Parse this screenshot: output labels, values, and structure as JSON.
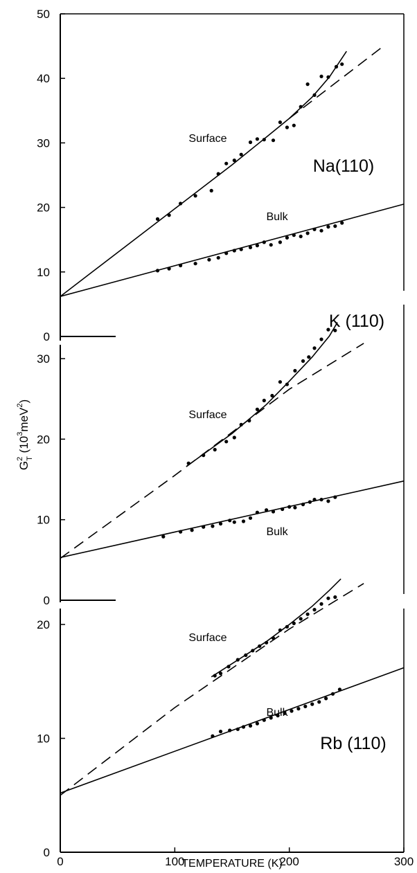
{
  "chart_data": [
    {
      "type": "scatter",
      "title": "Na(110)",
      "xlim": [
        0,
        300
      ],
      "ylim": [
        0,
        50
      ],
      "y_ticks": [
        0,
        10,
        20,
        30,
        40,
        50
      ],
      "y_tick_labels": [
        "0",
        "10",
        "20",
        "30",
        "40",
        "50"
      ],
      "series": [
        {
          "name": "Surface",
          "points": [
            [
              85,
              18.2
            ],
            [
              95,
              18.8
            ],
            [
              105,
              20.6
            ],
            [
              118,
              21.8
            ],
            [
              132,
              22.6
            ],
            [
              138,
              25.2
            ],
            [
              145,
              26.8
            ],
            [
              152,
              27.3
            ],
            [
              158,
              28.2
            ],
            [
              166,
              30.1
            ],
            [
              172,
              30.6
            ],
            [
              178,
              30.5
            ],
            [
              186,
              30.4
            ],
            [
              192,
              33.2
            ],
            [
              198,
              32.4
            ],
            [
              204,
              32.7
            ],
            [
              210,
              35.6
            ],
            [
              216,
              39.1
            ],
            [
              222,
              37.4
            ],
            [
              228,
              40.3
            ],
            [
              234,
              40.2
            ],
            [
              241,
              41.8
            ],
            [
              246,
              42.2
            ]
          ],
          "fit": [
            [
              0,
              6.2
            ],
            [
              100,
              19.8
            ],
            [
              150,
              26.6
            ],
            [
              180,
              30.9
            ],
            [
              200,
              33.8
            ],
            [
              220,
              37.1
            ],
            [
              235,
              40.2
            ],
            [
              250,
              44.2
            ]
          ],
          "harmonic_fit": [
            [
              200,
              33.8
            ],
            [
              280,
              44.7
            ]
          ]
        },
        {
          "name": "Bulk",
          "points": [
            [
              85,
              10.2
            ],
            [
              95,
              10.5
            ],
            [
              105,
              11.0
            ],
            [
              118,
              11.3
            ],
            [
              130,
              11.9
            ],
            [
              138,
              12.2
            ],
            [
              145,
              12.9
            ],
            [
              152,
              13.3
            ],
            [
              158,
              13.5
            ],
            [
              166,
              13.8
            ],
            [
              172,
              14.1
            ],
            [
              178,
              14.6
            ],
            [
              184,
              14.2
            ],
            [
              192,
              14.6
            ],
            [
              198,
              15.3
            ],
            [
              204,
              15.7
            ],
            [
              210,
              15.5
            ],
            [
              216,
              16.0
            ],
            [
              222,
              16.6
            ],
            [
              228,
              16.4
            ],
            [
              234,
              17.0
            ],
            [
              240,
              17.1
            ],
            [
              246,
              17.6
            ]
          ],
          "fit": [
            [
              0,
              6.2
            ],
            [
              300,
              20.5
            ]
          ]
        }
      ]
    },
    {
      "type": "scatter",
      "title": "K (110)",
      "xlim": [
        0,
        300
      ],
      "ylim": [
        0,
        33
      ],
      "y_ticks": [
        0,
        10,
        20,
        30
      ],
      "y_tick_labels": [
        "0",
        "10",
        "20",
        "30"
      ],
      "series": [
        {
          "name": "Surface",
          "points": [
            [
              112,
              17.0
            ],
            [
              125,
              18.0
            ],
            [
              135,
              18.7
            ],
            [
              145,
              19.7
            ],
            [
              152,
              20.2
            ],
            [
              158,
              21.8
            ],
            [
              165,
              22.3
            ],
            [
              172,
              23.7
            ],
            [
              178,
              24.8
            ],
            [
              185,
              25.4
            ],
            [
              192,
              27.1
            ],
            [
              198,
              26.8
            ],
            [
              205,
              28.5
            ],
            [
              212,
              29.7
            ],
            [
              217,
              30.2
            ],
            [
              222,
              31.3
            ],
            [
              228,
              32.4
            ],
            [
              234,
              33.6
            ],
            [
              240,
              33.5
            ]
          ],
          "fit": [
            [
              110,
              16.6
            ],
            [
              150,
              20.7
            ],
            [
              180,
              24.3
            ],
            [
              200,
              27.2
            ],
            [
              220,
              30.2
            ],
            [
              235,
              32.8
            ],
            [
              242,
              34.5
            ]
          ],
          "harmonic_fit": [
            [
              0,
              5.2
            ],
            [
              100,
              15.5
            ],
            [
              200,
              26.2
            ],
            [
              265,
              31.9
            ]
          ]
        },
        {
          "name": "Bulk",
          "points": [
            [
              90,
              7.9
            ],
            [
              105,
              8.5
            ],
            [
              115,
              8.7
            ],
            [
              125,
              9.1
            ],
            [
              133,
              9.2
            ],
            [
              140,
              9.5
            ],
            [
              148,
              9.9
            ],
            [
              152,
              9.7
            ],
            [
              160,
              9.8
            ],
            [
              166,
              10.2
            ],
            [
              172,
              10.9
            ],
            [
              180,
              11.2
            ],
            [
              186,
              11.0
            ],
            [
              194,
              11.3
            ],
            [
              200,
              11.6
            ],
            [
              205,
              11.5
            ],
            [
              212,
              11.9
            ],
            [
              218,
              12.2
            ],
            [
              222,
              12.5
            ],
            [
              228,
              12.5
            ],
            [
              234,
              12.3
            ],
            [
              240,
              12.8
            ]
          ],
          "fit": [
            [
              0,
              5.3
            ],
            [
              300,
              14.8
            ]
          ]
        }
      ]
    },
    {
      "type": "scatter",
      "title": "Rb (110)",
      "xlim": [
        0,
        300
      ],
      "ylim": [
        0,
        22
      ],
      "y_ticks": [
        0,
        10,
        20
      ],
      "y_tick_labels": [
        "0",
        "10",
        "20"
      ],
      "xlabel": "TEMPERATURE (K)",
      "ylabel": "G²_T (10³meV²)",
      "x_ticks": [
        0,
        100,
        200,
        300
      ],
      "x_tick_labels": [
        "0",
        "100",
        "200",
        "300"
      ],
      "series": [
        {
          "name": "Surface",
          "points": [
            [
              135,
              15.5
            ],
            [
              140,
              15.7
            ],
            [
              147,
              16.3
            ],
            [
              155,
              16.9
            ],
            [
              162,
              17.3
            ],
            [
              168,
              17.7
            ],
            [
              174,
              18.1
            ],
            [
              180,
              18.4
            ],
            [
              186,
              18.8
            ],
            [
              192,
              19.5
            ],
            [
              198,
              19.8
            ],
            [
              204,
              20.1
            ],
            [
              210,
              20.5
            ],
            [
              216,
              20.9
            ],
            [
              222,
              21.3
            ],
            [
              228,
              21.8
            ],
            [
              234,
              22.3
            ],
            [
              240,
              22.4
            ]
          ],
          "fit": [
            [
              132,
              15.4
            ],
            [
              160,
              17.2
            ],
            [
              180,
              18.5
            ],
            [
              200,
              20.0
            ],
            [
              220,
              21.6
            ],
            [
              235,
              23.0
            ],
            [
              245,
              24.0
            ]
          ],
          "harmonic_fit": [
            [
              0,
              5.0
            ],
            [
              100,
              12.7
            ],
            [
              200,
              19.6
            ],
            [
              265,
              23.6
            ]
          ]
        },
        {
          "name": "Bulk",
          "points": [
            [
              133,
              10.2
            ],
            [
              140,
              10.6
            ],
            [
              148,
              10.7
            ],
            [
              155,
              10.8
            ],
            [
              160,
              11.0
            ],
            [
              166,
              11.1
            ],
            [
              172,
              11.3
            ],
            [
              178,
              11.6
            ],
            [
              184,
              11.8
            ],
            [
              190,
              12.0
            ],
            [
              196,
              12.2
            ],
            [
              202,
              12.4
            ],
            [
              208,
              12.6
            ],
            [
              214,
              12.8
            ],
            [
              220,
              13.0
            ],
            [
              226,
              13.2
            ],
            [
              232,
              13.5
            ],
            [
              238,
              13.9
            ],
            [
              244,
              14.3
            ]
          ],
          "fit": [
            [
              0,
              5.2
            ],
            [
              300,
              16.2
            ]
          ]
        }
      ]
    }
  ]
}
